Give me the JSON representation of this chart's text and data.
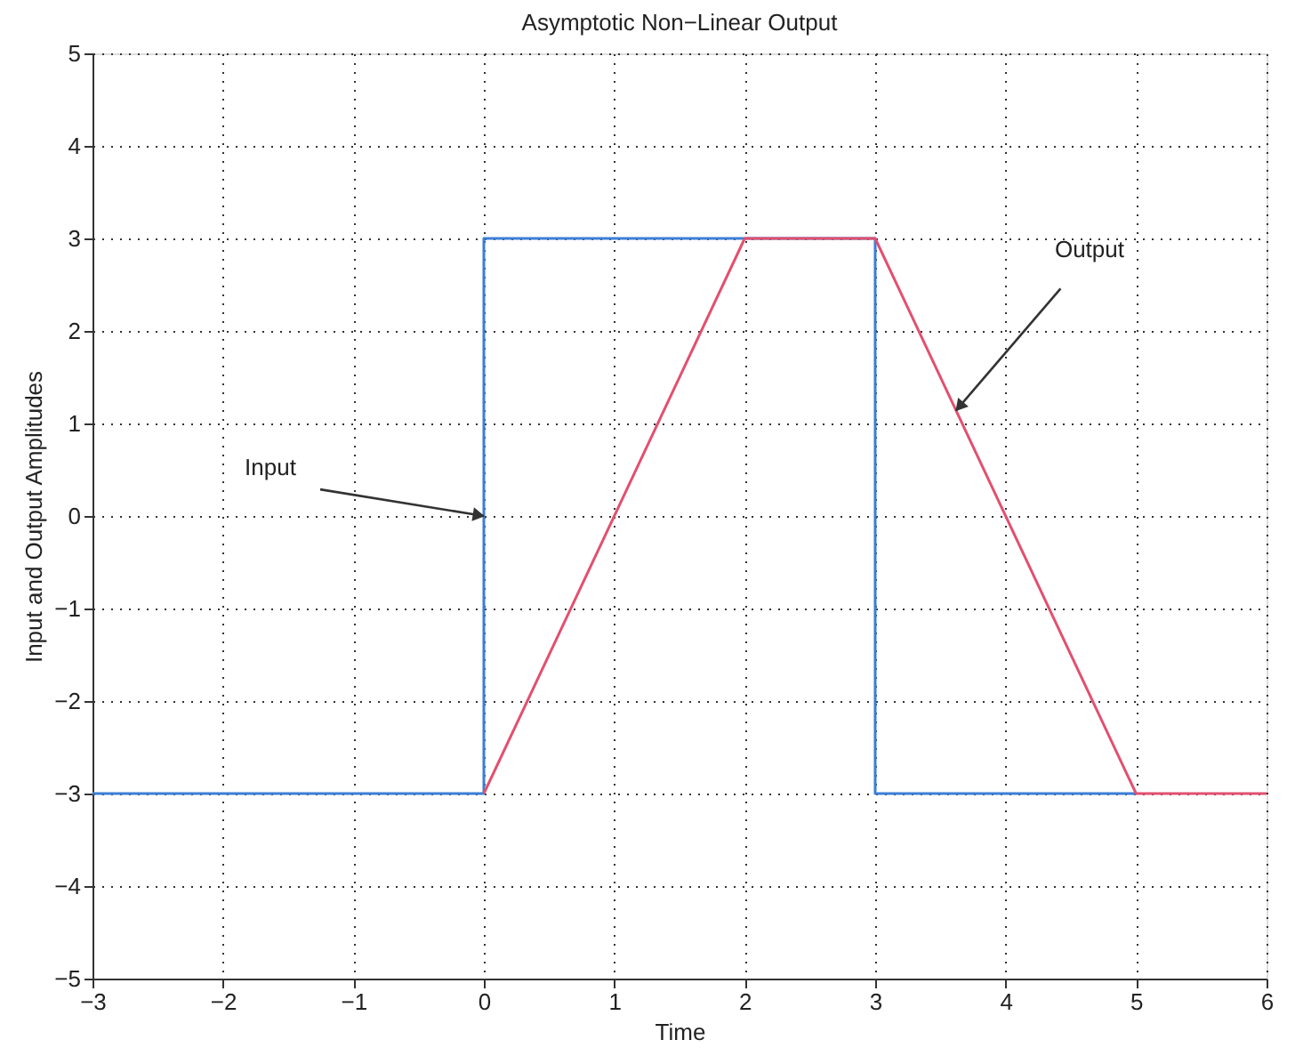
{
  "chart_data": {
    "type": "line",
    "title": "Asymptotic Non−Linear Output",
    "xlabel": "Time",
    "ylabel": "Input and Output Amplitudes",
    "xlim": [
      -3,
      6
    ],
    "xticks": [
      {
        "value": -3,
        "label": "−3"
      },
      {
        "value": -2,
        "label": "−2"
      },
      {
        "value": -1,
        "label": "−1"
      },
      0,
      1,
      2,
      3,
      4,
      5,
      6
    ],
    "ylim": [
      -5,
      5
    ],
    "yticks": [
      {
        "value": -5,
        "label": "−5"
      },
      {
        "value": -4,
        "label": "−4"
      },
      {
        "value": -3,
        "label": "−3"
      },
      {
        "value": -2,
        "label": "−2"
      },
      {
        "value": -1,
        "label": "−1"
      },
      0,
      1,
      2,
      3,
      4,
      5
    ],
    "grid": true,
    "marker": "none",
    "line_style": "solid",
    "series": [
      {
        "color": "#3b7fd6",
        "x": [
          -3,
          0,
          0,
          3,
          3,
          5
        ],
        "values": [
          -3,
          -3,
          3,
          3,
          -3,
          -3
        ]
      },
      {
        "color": "#e2506e",
        "x": [
          0,
          2,
          3,
          5,
          6
        ],
        "values": [
          -3,
          3,
          3,
          -3,
          -3
        ]
      }
    ],
    "annotations": [
      {
        "text": "Input",
        "x": 0,
        "y": 0
      },
      {
        "text": "Output",
        "x": 3.62,
        "y": 1.14
      }
    ]
  }
}
